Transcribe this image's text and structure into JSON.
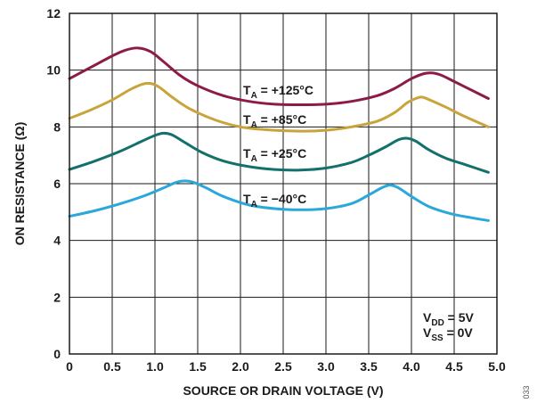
{
  "chart_data": {
    "type": "line",
    "xlabel": "SOURCE OR DRAIN VOLTAGE (V)",
    "ylabel": "ON RESISTANCE (Ω)",
    "xlim": [
      0,
      5.0
    ],
    "ylim": [
      0,
      12
    ],
    "xticks": [
      "0",
      "0.5",
      "1.0",
      "1.5",
      "2.0",
      "2.5",
      "3.0",
      "3.5",
      "4.0",
      "4.5",
      "5.0"
    ],
    "yticks": [
      "0",
      "2",
      "4",
      "6",
      "8",
      "10",
      "12"
    ],
    "grid": true,
    "series": [
      {
        "name_main": "T",
        "name_sub": "A",
        "name_rest": " = +125°C",
        "color": "#8c1b47",
        "x": [
          0,
          0.25,
          0.5,
          0.65,
          0.8,
          0.95,
          1.1,
          1.3,
          1.5,
          1.8,
          2.1,
          2.4,
          2.7,
          3.0,
          3.3,
          3.6,
          3.8,
          4.0,
          4.15,
          4.25,
          4.35,
          4.5,
          4.7,
          4.9
        ],
        "y": [
          9.7,
          10.1,
          10.5,
          10.7,
          10.78,
          10.65,
          10.3,
          9.8,
          9.45,
          9.1,
          8.9,
          8.8,
          8.78,
          8.8,
          8.9,
          9.1,
          9.35,
          9.7,
          9.88,
          9.9,
          9.82,
          9.6,
          9.3,
          9.0
        ]
      },
      {
        "name_main": "T",
        "name_sub": "A",
        "name_rest": " = +85°C",
        "color": "#c9a43b",
        "x": [
          0,
          0.25,
          0.5,
          0.7,
          0.85,
          0.95,
          1.05,
          1.2,
          1.4,
          1.7,
          2.0,
          2.3,
          2.7,
          3.0,
          3.3,
          3.6,
          3.8,
          3.95,
          4.05,
          4.12,
          4.2,
          4.4,
          4.6,
          4.9
        ],
        "y": [
          8.3,
          8.6,
          8.95,
          9.3,
          9.5,
          9.53,
          9.4,
          9.05,
          8.65,
          8.25,
          8.0,
          7.9,
          7.85,
          7.88,
          8.0,
          8.2,
          8.5,
          8.85,
          9.0,
          9.05,
          8.97,
          8.7,
          8.4,
          8.0
        ]
      },
      {
        "name_main": "T",
        "name_sub": "A",
        "name_rest": " = +25°C",
        "color": "#14706a",
        "x": [
          0,
          0.3,
          0.6,
          0.85,
          1.0,
          1.1,
          1.2,
          1.35,
          1.55,
          1.8,
          2.1,
          2.4,
          2.7,
          3.0,
          3.3,
          3.5,
          3.7,
          3.85,
          3.95,
          4.05,
          4.2,
          4.4,
          4.65,
          4.9
        ],
        "y": [
          6.5,
          6.8,
          7.15,
          7.5,
          7.7,
          7.78,
          7.72,
          7.45,
          7.1,
          6.8,
          6.6,
          6.5,
          6.48,
          6.55,
          6.75,
          7.0,
          7.3,
          7.55,
          7.6,
          7.5,
          7.2,
          6.9,
          6.65,
          6.4
        ]
      },
      {
        "name_main": "T",
        "name_sub": "A",
        "name_rest": " = −40°C",
        "color": "#2aa7db",
        "x": [
          0,
          0.3,
          0.6,
          0.9,
          1.1,
          1.25,
          1.35,
          1.45,
          1.6,
          1.8,
          2.1,
          2.4,
          2.7,
          3.0,
          3.3,
          3.5,
          3.65,
          3.75,
          3.85,
          4.0,
          4.2,
          4.45,
          4.7,
          4.9
        ],
        "y": [
          4.85,
          5.05,
          5.3,
          5.6,
          5.85,
          6.05,
          6.1,
          6.05,
          5.85,
          5.55,
          5.25,
          5.12,
          5.08,
          5.12,
          5.3,
          5.6,
          5.85,
          5.95,
          5.85,
          5.55,
          5.2,
          4.95,
          4.8,
          4.7
        ]
      }
    ],
    "conditions": [
      {
        "main": "V",
        "sub": "DD",
        "rest": " = 5V"
      },
      {
        "main": "V",
        "sub": "SS",
        "rest": " = 0V"
      }
    ],
    "figure_number": "033"
  }
}
